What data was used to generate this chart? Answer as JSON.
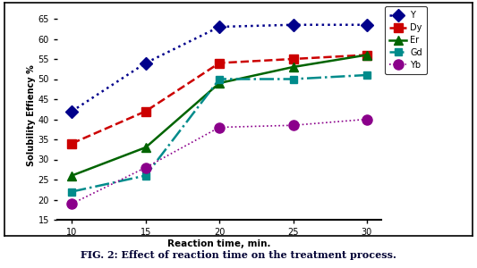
{
  "x": [
    10,
    15,
    20,
    25,
    30
  ],
  "Y": [
    42,
    54,
    63,
    63.5,
    63.5
  ],
  "Dy": [
    34,
    42,
    54,
    55,
    56
  ],
  "Er": [
    26,
    33,
    49,
    53,
    56
  ],
  "Gd": [
    22,
    26,
    50,
    50,
    51
  ],
  "Yb": [
    19,
    28,
    38,
    38.5,
    40
  ],
  "Y_color": "#00008B",
  "Dy_color": "#CC0000",
  "Er_color": "#006400",
  "Gd_color": "#008B8B",
  "Yb_color": "#8B008B",
  "ylabel": "Solubility Effiency %",
  "xlabel": "Reaction time, min.",
  "ylim": [
    15,
    67
  ],
  "yticks": [
    15,
    20,
    25,
    30,
    35,
    40,
    45,
    50,
    55,
    60,
    65
  ],
  "xticks": [
    10,
    15,
    20,
    25,
    30
  ],
  "caption": "FIG. 2: Effect of reaction time on the treatment process."
}
